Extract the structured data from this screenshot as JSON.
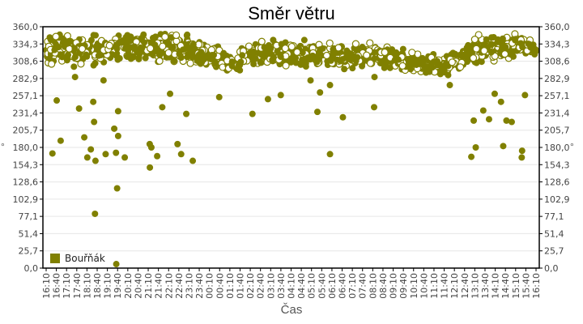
{
  "chart_data": {
    "type": "scatter",
    "title": "Směr větru",
    "xlabel": "Čas",
    "ylabel": "°",
    "ylabel_right": "°",
    "ylim": [
      0,
      360
    ],
    "y_ticks": [
      "0,0",
      "25,7",
      "51,4",
      "77,1",
      "102,9",
      "128,6",
      "154,3",
      "180,0",
      "205,7",
      "231,4",
      "257,1",
      "282,9",
      "308,6",
      "334,3",
      "360,0"
    ],
    "x_ticks": [
      "16:10",
      "16:40",
      "17:10",
      "17:40",
      "18:10",
      "18:40",
      "19:10",
      "19:40",
      "20:10",
      "20:40",
      "21:10",
      "21:40",
      "22:10",
      "22:40",
      "23:10",
      "23:40",
      "00:10",
      "00:40",
      "01:10",
      "01:40",
      "02:10",
      "02:40",
      "03:10",
      "03:40",
      "04:10",
      "04:40",
      "05:10",
      "05:40",
      "06:10",
      "06:40",
      "07:10",
      "07:40",
      "08:10",
      "08:40",
      "09:10",
      "09:40",
      "10:10",
      "10:40",
      "11:10",
      "11:40",
      "12:10",
      "12:40",
      "13:10",
      "13:40",
      "14:10",
      "14:40",
      "15:10",
      "15:40",
      "16:10"
    ],
    "grid": {
      "horizontal": true,
      "vertical": false,
      "color": "#e6e6e6"
    },
    "legend": {
      "position": "inside-bottom-left",
      "entries": [
        "Bouřňák"
      ]
    },
    "series": [
      {
        "name": "Bouřňák",
        "color": "#808000",
        "marker": "circle",
        "description": "Wind direction samples over 24h; dense band ~300-345° with scattered lower outliers",
        "band_by_hour": [
          {
            "x": "16:10",
            "center": 325,
            "spread": 14
          },
          {
            "x": "18:10",
            "center": 325,
            "spread": 16
          },
          {
            "x": "20:10",
            "center": 327,
            "spread": 14
          },
          {
            "x": "22:10",
            "center": 330,
            "spread": 14
          },
          {
            "x": "00:10",
            "center": 318,
            "spread": 12
          },
          {
            "x": "01:10",
            "center": 305,
            "spread": 10
          },
          {
            "x": "02:10",
            "center": 318,
            "spread": 12
          },
          {
            "x": "04:10",
            "center": 320,
            "spread": 13
          },
          {
            "x": "06:10",
            "center": 316,
            "spread": 12
          },
          {
            "x": "08:10",
            "center": 318,
            "spread": 12
          },
          {
            "x": "10:10",
            "center": 308,
            "spread": 10
          },
          {
            "x": "11:40",
            "center": 302,
            "spread": 10
          },
          {
            "x": "13:10",
            "center": 325,
            "spread": 14
          },
          {
            "x": "15:10",
            "center": 332,
            "spread": 12
          },
          {
            "x": "16:10",
            "center": 326,
            "spread": 6
          }
        ],
        "outliers": [
          {
            "x": "16:40",
            "y": 171
          },
          {
            "x": "16:40",
            "y": 190
          },
          {
            "x": "16:40",
            "y": 250
          },
          {
            "x": "17:40",
            "y": 285
          },
          {
            "x": "17:40",
            "y": 238
          },
          {
            "x": "18:10",
            "y": 165
          },
          {
            "x": "18:10",
            "y": 177
          },
          {
            "x": "18:10",
            "y": 195
          },
          {
            "x": "18:40",
            "y": 218
          },
          {
            "x": "18:40",
            "y": 160
          },
          {
            "x": "18:40",
            "y": 81
          },
          {
            "x": "18:40",
            "y": 248
          },
          {
            "x": "19:10",
            "y": 170
          },
          {
            "x": "19:10",
            "y": 280
          },
          {
            "x": "19:40",
            "y": 208
          },
          {
            "x": "19:40",
            "y": 197
          },
          {
            "x": "19:40",
            "y": 172
          },
          {
            "x": "19:40",
            "y": 119
          },
          {
            "x": "19:40",
            "y": 6
          },
          {
            "x": "19:40",
            "y": 234
          },
          {
            "x": "20:10",
            "y": 165
          },
          {
            "x": "21:10",
            "y": 180
          },
          {
            "x": "21:10",
            "y": 185
          },
          {
            "x": "21:10",
            "y": 150
          },
          {
            "x": "21:40",
            "y": 167
          },
          {
            "x": "21:40",
            "y": 240
          },
          {
            "x": "22:10",
            "y": 260
          },
          {
            "x": "22:40",
            "y": 170
          },
          {
            "x": "22:40",
            "y": 185
          },
          {
            "x": "23:10",
            "y": 230
          },
          {
            "x": "23:10",
            "y": 160
          },
          {
            "x": "00:40",
            "y": 255
          },
          {
            "x": "01:40",
            "y": 295
          },
          {
            "x": "02:10",
            "y": 230
          },
          {
            "x": "03:10",
            "y": 252
          },
          {
            "x": "03:40",
            "y": 258
          },
          {
            "x": "05:10",
            "y": 280
          },
          {
            "x": "05:40",
            "y": 233
          },
          {
            "x": "05:40",
            "y": 262
          },
          {
            "x": "06:10",
            "y": 170
          },
          {
            "x": "06:10",
            "y": 273
          },
          {
            "x": "06:40",
            "y": 225
          },
          {
            "x": "08:10",
            "y": 240
          },
          {
            "x": "08:10",
            "y": 285
          },
          {
            "x": "12:10",
            "y": 273
          },
          {
            "x": "13:10",
            "y": 180
          },
          {
            "x": "13:10",
            "y": 166
          },
          {
            "x": "13:10",
            "y": 220
          },
          {
            "x": "13:40",
            "y": 235
          },
          {
            "x": "13:40",
            "y": 222
          },
          {
            "x": "14:10",
            "y": 260
          },
          {
            "x": "14:40",
            "y": 182
          },
          {
            "x": "14:40",
            "y": 220
          },
          {
            "x": "14:40",
            "y": 248
          },
          {
            "x": "15:10",
            "y": 218
          },
          {
            "x": "15:40",
            "y": 175
          },
          {
            "x": "15:40",
            "y": 165
          },
          {
            "x": "15:40",
            "y": 258
          }
        ]
      }
    ]
  }
}
